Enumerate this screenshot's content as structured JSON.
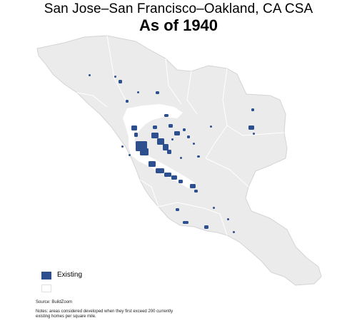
{
  "header": {
    "title": "San Jose–San Francisco–Oakland, CA CSA",
    "subtitle": "As of 1940"
  },
  "map": {
    "region_fill": "#ebebeb",
    "boundary_color": "#d4d4d4",
    "water_color": "#ffffff",
    "developed_color": "#2d4f8e"
  },
  "legend": {
    "items": [
      {
        "label": "Existing",
        "color": "#2d4f8e"
      },
      {
        "label": "",
        "color": "#ffffff"
      }
    ]
  },
  "footer": {
    "source": "Source: BuildZoom",
    "notes": "Notes: areas considered developed when they first exceed 200 currently existing homes per square mile."
  }
}
